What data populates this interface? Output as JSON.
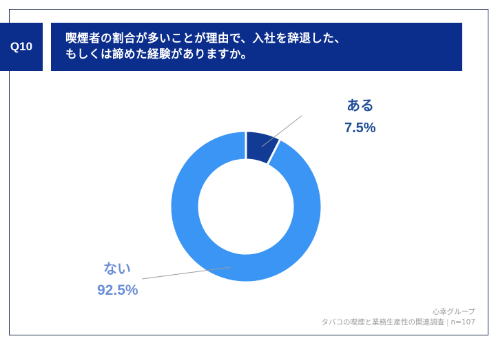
{
  "header": {
    "question_number": "Q10",
    "question_line1": "喫煙者の割合が多いことが理由で、入社を辞退した、",
    "question_line2": "もしくは諦めた経験がありますか。"
  },
  "labels": {
    "yes_label": "ある",
    "yes_value": "7.5%",
    "no_label": "ない",
    "no_value": "92.5%"
  },
  "footer": {
    "org": "心幸グループ",
    "survey": "タバコの喫煙と業務生産性の関連調査",
    "separator": "|",
    "sample": "n=107"
  },
  "colors": {
    "header_bg": "#0b2d8c",
    "yes_slice": "#113b94",
    "no_slice": "#3b95f4",
    "yes_label": "#1f4e96",
    "no_label": "#6b8ed6"
  },
  "chart_data": {
    "type": "pie",
    "subtype": "donut",
    "title": "喫煙者の割合が多いことが理由で、入社を辞退した、もしくは諦めた経験がありますか。",
    "categories": [
      "ある",
      "ない"
    ],
    "values": [
      7.5,
      92.5
    ],
    "unit": "%",
    "colors": [
      "#113b94",
      "#3b95f4"
    ],
    "start_angle": "12 o'clock, clockwise",
    "legend": "none (direct labels with leader lines)",
    "sample_size": 107
  }
}
